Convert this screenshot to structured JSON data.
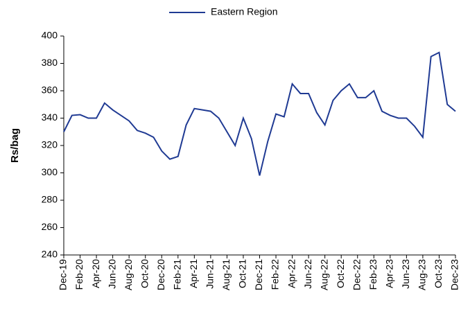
{
  "chart_data": {
    "type": "line",
    "y_label": "Rs/bag",
    "categories": [
      "Dec-19",
      null,
      "Feb-20",
      null,
      "Apr-20",
      null,
      "Jun-20",
      null,
      "Aug-20",
      null,
      "Oct-20",
      null,
      "Dec-20",
      null,
      "Feb-21",
      null,
      "Apr-21",
      null,
      "Jun-21",
      null,
      "Aug-21",
      null,
      "Oct-21",
      null,
      "Dec-21",
      null,
      "Feb-22",
      null,
      "Apr-22",
      null,
      "Jun-22",
      null,
      "Aug-22",
      null,
      "Oct-22",
      null,
      "Dec-22",
      null,
      "Feb-23",
      null,
      "Apr-23",
      null,
      "Jun-23",
      null,
      "Aug-23",
      null,
      "Oct-23",
      null,
      "Dec-23"
    ],
    "series": [
      {
        "name": "Eastern Region",
        "color": "#1f3a93",
        "values": [
          330,
          342,
          342.5,
          340,
          340,
          351,
          346,
          342,
          338,
          331,
          329,
          326,
          316,
          310,
          312,
          335,
          347,
          346,
          345,
          340,
          330,
          320,
          340,
          325,
          298,
          323,
          343,
          341,
          365,
          358,
          358,
          344,
          335,
          353,
          360,
          365,
          355,
          355,
          360,
          345,
          342,
          340,
          340,
          334,
          326,
          385,
          388,
          350,
          345
        ]
      }
    ],
    "ylim": [
      240,
      400
    ],
    "yticks": [
      240,
      260,
      280,
      300,
      320,
      340,
      360,
      380,
      400
    ],
    "legend": "top",
    "grid": false
  }
}
